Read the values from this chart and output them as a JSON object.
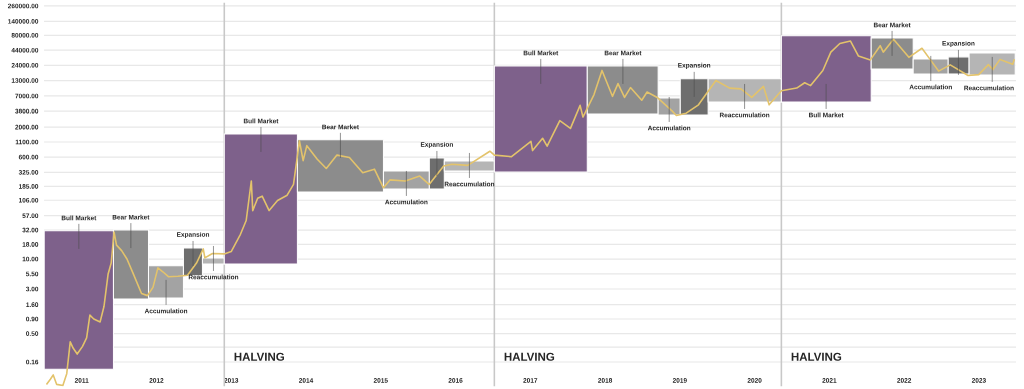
{
  "chart_data": {
    "type": "area",
    "log": "y",
    "grid": "y",
    "xlim": [
      "2010-07",
      "2023-07"
    ],
    "xticks": [
      "2011",
      "2012",
      "2013",
      "2014",
      "2015",
      "2016",
      "2017",
      "2018",
      "2019",
      "2020",
      "2021",
      "2022",
      "2023"
    ],
    "ylim": [
      0.06,
      300000
    ],
    "yticks": [
      {
        "value": 0.16,
        "label": "0.16"
      },
      {
        "value": 0.29,
        "label": null
      },
      {
        "value": 0.5,
        "label": "0.50"
      },
      {
        "value": 0.9,
        "label": "0.90"
      },
      {
        "value": 1.6,
        "label": "1.60"
      },
      {
        "value": 3,
        "label": "3.00"
      },
      {
        "value": 5.5,
        "label": "5.50"
      },
      {
        "value": 10,
        "label": "10.00"
      },
      {
        "value": 18,
        "label": "18.00"
      },
      {
        "value": 32,
        "label": "32.00"
      },
      {
        "value": 57,
        "label": "57.00"
      },
      {
        "value": 106,
        "label": "106.00"
      },
      {
        "value": 185,
        "label": "185.00"
      },
      {
        "value": 325,
        "label": "325.00"
      },
      {
        "value": 600,
        "label": "600.00"
      },
      {
        "value": 1100,
        "label": "1100.00"
      },
      {
        "value": 2000,
        "label": "2000.00"
      },
      {
        "value": 3800,
        "label": "3800.00"
      },
      {
        "value": 7000,
        "label": "7000.00"
      },
      {
        "value": 13000,
        "label": "13000.00"
      },
      {
        "value": 24000,
        "label": "24000.00"
      },
      {
        "value": 44000,
        "label": "44000.00"
      },
      {
        "value": 80000,
        "label": "80000.00"
      },
      {
        "value": 140000,
        "label": "140000.00"
      },
      {
        "value": 260000,
        "label": "260000.00"
      }
    ],
    "ref_lines": [
      {
        "axis": "x",
        "value": "2012-11-28",
        "label": "HALVING",
        "color": "#c8c8c8"
      },
      {
        "axis": "x",
        "value": "2016-07-09",
        "label": "HALVING",
        "color": "#c8c8c8"
      },
      {
        "axis": "x",
        "value": "2020-05-11",
        "label": "HALVING",
        "color": "#c8c8c8"
      }
    ],
    "series": [
      {
        "color": "#7e618b",
        "x": [
          "2010-07-02",
          "2010-07-02",
          "2011-06-05",
          "2011-06-05"
        ],
        "values": [
          0.12,
          31,
          31,
          0.12
        ]
      },
      {
        "color": "#8c8c8c",
        "x": [
          "2011-06-05",
          "2011-06-05",
          "2011-11-23",
          "2011-11-23"
        ],
        "values": [
          2.0,
          32,
          32,
          2.0
        ]
      },
      {
        "color": "#a3a3a3",
        "x": [
          "2011-11-23",
          "2011-11-23",
          "2012-05-12",
          "2012-05-12"
        ],
        "values": [
          2.1,
          7.6,
          7.6,
          2.1
        ]
      },
      {
        "color": "#6e6e6e",
        "x": [
          "2012-05-12",
          "2012-05-12",
          "2012-08-13",
          "2012-08-13"
        ],
        "values": [
          5.1,
          15.6,
          15.6,
          5.1
        ]
      },
      {
        "color": "#b5b5b5",
        "x": [
          "2012-08-13",
          "2012-08-13",
          "2012-11-28",
          "2012-11-28"
        ],
        "values": [
          8.2,
          10.4,
          10.4,
          8.2
        ]
      },
      {
        "color": "#7e618b",
        "x": [
          "2012-11-28",
          "2012-11-28",
          "2013-11-20",
          "2013-11-20"
        ],
        "values": [
          8.2,
          1520,
          1520,
          8.2
        ]
      },
      {
        "color": "#8c8c8c",
        "x": [
          "2013-11-20",
          "2013-11-20",
          "2015-01-14",
          "2015-01-14"
        ],
        "values": [
          148,
          1200,
          1200,
          148
        ]
      },
      {
        "color": "#a3a3a3",
        "x": [
          "2015-01-14",
          "2015-01-14",
          "2015-08-26",
          "2015-08-26"
        ],
        "values": [
          167,
          344,
          344,
          167
        ]
      },
      {
        "color": "#6e6e6e",
        "x": [
          "2015-08-26",
          "2015-08-26",
          "2015-11-07",
          "2015-11-07"
        ],
        "values": [
          167,
          580,
          580,
          167
        ]
      },
      {
        "color": "#b5b5b5",
        "x": [
          "2015-11-07",
          "2015-11-07",
          "2016-07-09",
          "2016-07-09"
        ],
        "values": [
          344,
          514,
          514,
          344
        ]
      },
      {
        "color": "#7e618b",
        "x": [
          "2016-07-09",
          "2016-07-09",
          "2017-10-06",
          "2017-10-06"
        ],
        "values": [
          331,
          23400,
          23400,
          331
        ]
      },
      {
        "color": "#8c8c8c",
        "x": [
          "2017-10-06",
          "2017-10-06",
          "2018-09-17",
          "2018-09-17"
        ],
        "values": [
          3400,
          23400,
          23400,
          3400
        ]
      },
      {
        "color": "#a3a3a3",
        "x": [
          "2018-09-17",
          "2018-09-17",
          "2019-01-03",
          "2019-01-03"
        ],
        "values": [
          3260,
          6470,
          6470,
          3260
        ]
      },
      {
        "color": "#6e6e6e",
        "x": [
          "2019-01-03",
          "2019-01-03",
          "2019-05-19",
          "2019-05-19"
        ],
        "values": [
          3260,
          13900,
          13900,
          3260
        ]
      },
      {
        "color": "#b5b5b5",
        "x": [
          "2019-05-19",
          "2019-05-19",
          "2020-05-11",
          "2020-05-11"
        ],
        "values": [
          5500,
          13900,
          13900,
          5500
        ]
      },
      {
        "color": "#7e618b",
        "x": [
          "2020-05-11",
          "2020-05-11",
          "2021-07-24",
          "2021-07-24"
        ],
        "values": [
          5500,
          78200,
          78200,
          5500
        ]
      },
      {
        "color": "#8c8c8c",
        "x": [
          "2021-07-24",
          "2021-07-24",
          "2022-02-14",
          "2022-02-14"
        ],
        "values": [
          20750,
          72000,
          72000,
          20750
        ]
      },
      {
        "color": "#a3a3a3",
        "x": [
          "2022-02-14",
          "2022-02-14",
          "2022-08-04",
          "2022-08-04"
        ],
        "values": [
          16960,
          31000,
          31000,
          16960
        ]
      },
      {
        "color": "#6e6e6e",
        "x": [
          "2022-08-04",
          "2022-08-04",
          "2022-11-14",
          "2022-11-14"
        ],
        "values": [
          16960,
          33600,
          33600,
          16960
        ]
      },
      {
        "color": "#b5b5b5",
        "x": [
          "2022-11-14",
          "2022-11-14",
          "2023-06-27",
          "2023-06-27"
        ],
        "values": [
          16300,
          39400,
          39400,
          16300
        ]
      },
      {
        "type": "line",
        "color": "#e3c36b",
        "x": [
          "2010-07-13",
          "2010-08-01",
          "2010-08-15",
          "2010-09-01",
          "2010-10-01",
          "2010-10-20",
          "2010-11-06",
          "2010-11-20",
          "2010-12-10",
          "2011-01-05",
          "2011-01-25",
          "2011-02-10",
          "2011-03-01",
          "2011-04-01",
          "2011-04-20",
          "2011-05-10",
          "2011-05-25",
          "2011-06-08",
          "2011-06-20",
          "2011-07-15",
          "2011-08-10",
          "2011-09-10",
          "2011-10-20",
          "2011-11-18",
          "2011-12-15",
          "2012-01-08",
          "2012-02-01",
          "2012-03-01",
          "2012-04-15",
          "2012-06-01",
          "2012-07-15",
          "2012-08-17",
          "2012-08-25",
          "2012-10-01",
          "2012-11-28",
          "2013-01-01",
          "2013-02-15",
          "2013-03-15",
          "2013-04-09",
          "2013-04-16",
          "2013-05-10",
          "2013-06-01",
          "2013-07-05",
          "2013-08-15",
          "2013-10-01",
          "2013-11-01",
          "2013-11-30",
          "2013-12-18",
          "2014-01-05",
          "2014-02-25",
          "2014-04-10",
          "2014-06-01",
          "2014-08-01",
          "2014-10-05",
          "2014-12-01",
          "2015-01-14",
          "2015-02-15",
          "2015-05-01",
          "2015-07-10",
          "2015-08-25",
          "2015-11-04",
          "2015-12-15",
          "2016-03-01",
          "2016-06-17",
          "2016-07-09",
          "2016-10-01",
          "2017-01-04",
          "2017-01-12",
          "2017-03-02",
          "2017-03-24",
          "2017-05-25",
          "2017-07-16",
          "2017-09-01",
          "2017-09-15",
          "2017-11-08",
          "2017-12-17",
          "2018-02-06",
          "2018-03-05",
          "2018-04-06",
          "2018-05-05",
          "2018-06-29",
          "2018-07-25",
          "2018-09-15",
          "2018-11-25",
          "2018-12-15",
          "2019-02-01",
          "2019-04-02",
          "2019-06-26",
          "2019-09-01",
          "2019-10-26",
          "2019-12-18",
          "2020-02-13",
          "2020-03-12",
          "2020-05-11",
          "2020-07-25",
          "2020-09-02",
          "2020-10-01",
          "2020-11-30",
          "2021-01-08",
          "2021-02-21",
          "2021-04-14",
          "2021-05-23",
          "2021-07-20",
          "2021-09-06",
          "2021-09-21",
          "2021-11-10",
          "2022-01-24",
          "2022-03-29",
          "2022-05-12",
          "2022-06-18",
          "2022-08-14",
          "2022-11-09",
          "2022-12-31",
          "2023-02-16",
          "2023-03-10",
          "2023-04-14",
          "2023-06-15",
          "2023-06-23"
        ],
        "values": [
          0.065,
          0.08,
          0.095,
          0.065,
          0.062,
          0.1,
          0.36,
          0.28,
          0.22,
          0.3,
          0.42,
          1.05,
          0.9,
          0.8,
          1.5,
          5.5,
          8.5,
          29.6,
          17.5,
          14,
          10,
          5.5,
          2.5,
          2.3,
          3.2,
          7.0,
          6.0,
          4.9,
          5.0,
          5.2,
          8.5,
          15,
          10.5,
          12.5,
          12.3,
          13.5,
          27,
          47,
          230,
          70,
          115,
          125,
          70,
          105,
          130,
          200,
          1150,
          520,
          950,
          550,
          380,
          650,
          590,
          320,
          370,
          175,
          240,
          230,
          280,
          200,
          420,
          450,
          430,
          760,
          650,
          610,
          1130,
          780,
          1280,
          930,
          2600,
          1900,
          4800,
          3000,
          7400,
          19500,
          6900,
          11500,
          6600,
          9800,
          5900,
          8200,
          6500,
          3800,
          3200,
          3500,
          4900,
          13000,
          9600,
          9300,
          6600,
          10300,
          4900,
          8600,
          9600,
          11900,
          10600,
          19500,
          40700,
          57500,
          63500,
          34700,
          29800,
          52700,
          40700,
          68000,
          33000,
          47500,
          28900,
          19000,
          24400,
          15900,
          16500,
          24600,
          20200,
          30400,
          25000,
          30700
        ]
      }
    ],
    "annotations": [
      {
        "text": "Bull Market",
        "x": "2010-12-18",
        "y": 31
      },
      {
        "text": "Bear Market",
        "x": "2011-08-29",
        "y": 32
      },
      {
        "text": "Accumulation",
        "x": "2012-02-17",
        "y": 2.1
      },
      {
        "text": "Expansion",
        "x": "2012-06-28",
        "y": 15.6
      },
      {
        "text": "Reaccumulation",
        "x": "2012-10-06",
        "y": 8.2
      },
      {
        "text": "Bull Market",
        "x": "2013-05-26",
        "y": 1520
      },
      {
        "text": "Bear Market",
        "x": "2014-06-18",
        "y": 1200
      },
      {
        "text": "Accumulation",
        "x": "2015-05-06",
        "y": 167
      },
      {
        "text": "Expansion",
        "x": "2015-10-02",
        "y": 580
      },
      {
        "text": "Reaccumulation",
        "x": "2016-03-09",
        "y": 344
      },
      {
        "text": "Bull Market",
        "x": "2017-02-21",
        "y": 23400
      },
      {
        "text": "Bear Market",
        "x": "2018-03-29",
        "y": 23400
      },
      {
        "text": "Accumulation",
        "x": "2018-11-10",
        "y": 3260
      },
      {
        "text": "Expansion",
        "x": "2019-03-12",
        "y": 13900
      },
      {
        "text": "Reaccumulation",
        "x": "2019-11-13",
        "y": 5500
      },
      {
        "text": "Bull Market",
        "x": "2020-12-16",
        "y": 5500
      },
      {
        "text": "Bear Market",
        "x": "2021-11-03",
        "y": 72000
      },
      {
        "text": "Accumulation",
        "x": "2022-05-11",
        "y": 16960
      },
      {
        "text": "Expansion",
        "x": "2022-09-23",
        "y": 33600
      },
      {
        "text": "Reaccumulation",
        "x": "2023-03-07",
        "y": 16300
      }
    ]
  }
}
